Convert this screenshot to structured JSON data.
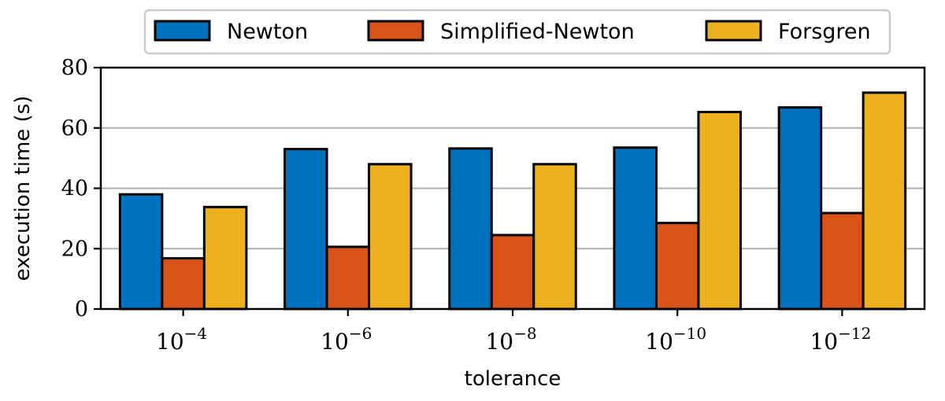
{
  "chart_data": {
    "type": "bar",
    "categories": [
      {
        "base": "10",
        "exp": "−4"
      },
      {
        "base": "10",
        "exp": "−6"
      },
      {
        "base": "10",
        "exp": "−8"
      },
      {
        "base": "10",
        "exp": "−10"
      },
      {
        "base": "10",
        "exp": "−12"
      }
    ],
    "series": [
      {
        "name": "Newton",
        "color": "#0072BD",
        "values": [
          38,
          53,
          53.2,
          53.5,
          66.8
        ]
      },
      {
        "name": "Simplified-Newton",
        "color": "#D95319",
        "values": [
          16.8,
          20.6,
          24.5,
          28.5,
          31.8
        ]
      },
      {
        "name": "Forsgren",
        "color": "#EDB120",
        "values": [
          33.8,
          48,
          48,
          65.3,
          71.7
        ]
      }
    ],
    "xlabel": "tolerance",
    "ylabel": "execution time (s)",
    "ylim": [
      0,
      80
    ],
    "yticks": [
      0,
      20,
      40,
      60,
      80
    ],
    "grid": "horizontal",
    "legend_position": "top-center, outside plot"
  }
}
